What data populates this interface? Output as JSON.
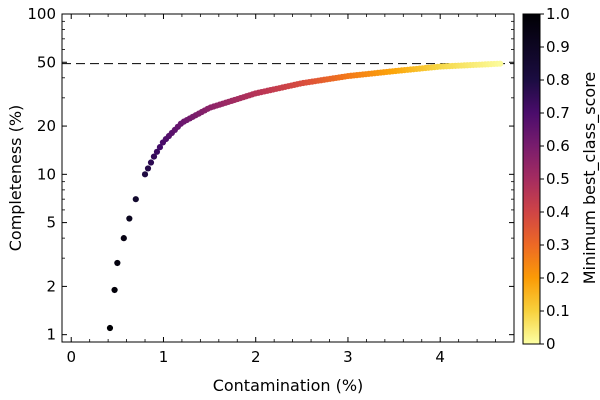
{
  "chart_data": {
    "type": "scatter",
    "title": "",
    "xlabel": "Contamination (%)",
    "ylabel": "Completeness (%)",
    "colorbar_label": "Minimum best_class_score",
    "x_scale": "linear",
    "y_scale": "log",
    "xlim": [
      -0.1,
      4.8
    ],
    "ylim": [
      0.9,
      100
    ],
    "x_ticks": [
      0,
      1,
      2,
      3,
      4
    ],
    "x_tick_labels": [
      "0",
      "1",
      "2",
      "3",
      "4"
    ],
    "y_ticks": [
      1,
      2,
      5,
      10,
      20,
      50,
      100
    ],
    "y_tick_labels": [
      "1",
      "2",
      "5",
      "10",
      "20",
      "50",
      "100"
    ],
    "colorbar_ticks": [
      0,
      0.1,
      0.2,
      0.3,
      0.4,
      0.5,
      0.6,
      0.7,
      0.8,
      0.9,
      1.0
    ],
    "colorbar_tick_labels": [
      "0",
      "0.1",
      "0.2",
      "0.3",
      "0.4",
      "0.5",
      "0.6",
      "0.7",
      "0.8",
      "0.9",
      "1.0"
    ],
    "colormap": "inferno",
    "colorbar_range": [
      0,
      1
    ],
    "reference_line": {
      "y": 49,
      "style": "dashed",
      "color": "#000000"
    },
    "curve_anchor_points": [
      {
        "contamination": 0.42,
        "completeness": 1.1,
        "min_score": 1.0
      },
      {
        "contamination": 0.47,
        "completeness": 1.9,
        "min_score": 0.99
      },
      {
        "contamination": 0.5,
        "completeness": 2.8,
        "min_score": 0.98
      },
      {
        "contamination": 0.57,
        "completeness": 4.0,
        "min_score": 0.97
      },
      {
        "contamination": 0.63,
        "completeness": 5.3,
        "min_score": 0.95
      },
      {
        "contamination": 0.7,
        "completeness": 7.0,
        "min_score": 0.92
      },
      {
        "contamination": 0.8,
        "completeness": 10.0,
        "min_score": 0.88
      },
      {
        "contamination": 0.9,
        "completeness": 13.0,
        "min_score": 0.83
      },
      {
        "contamination": 1.0,
        "completeness": 16.0,
        "min_score": 0.78
      },
      {
        "contamination": 1.2,
        "completeness": 21.0,
        "min_score": 0.7
      },
      {
        "contamination": 1.5,
        "completeness": 26.0,
        "min_score": 0.62
      },
      {
        "contamination": 2.0,
        "completeness": 32.0,
        "min_score": 0.52
      },
      {
        "contamination": 2.5,
        "completeness": 37.0,
        "min_score": 0.42
      },
      {
        "contamination": 3.0,
        "completeness": 41.0,
        "min_score": 0.3
      },
      {
        "contamination": 3.5,
        "completeness": 44.0,
        "min_score": 0.2
      },
      {
        "contamination": 4.0,
        "completeness": 47.0,
        "min_score": 0.1
      },
      {
        "contamination": 4.65,
        "completeness": 49.0,
        "min_score": 0.01
      }
    ],
    "num_points": 120
  }
}
